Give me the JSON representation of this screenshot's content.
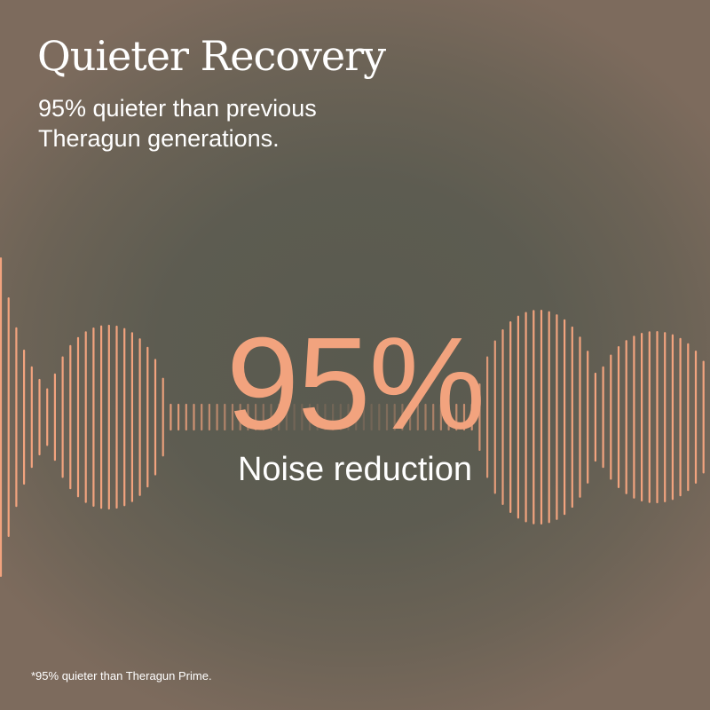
{
  "title": "Quieter Recovery",
  "subtitle": "95% quieter than previous Theragun generations.",
  "stat": {
    "value": "95%",
    "label": "Noise reduction"
  },
  "footnote": "*95% quieter than Theragun Prime.",
  "colors": {
    "accent": "#f2a37e",
    "background": "#5c5b50",
    "text": "#ffffff"
  },
  "graphic": "sound-waveform"
}
